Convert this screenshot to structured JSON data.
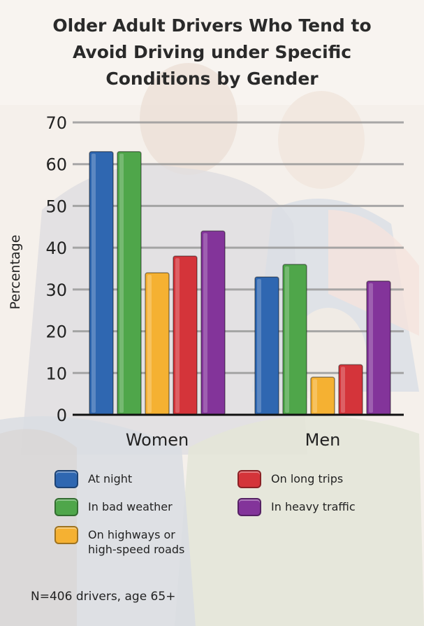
{
  "chart_data": {
    "type": "bar",
    "title": "Older Adult Drivers Who Tend to Avoid Driving under Specific Conditions by Gender",
    "title_lines": [
      "Older Adult Drivers Who Tend to",
      "Avoid Driving under Specific",
      "Conditions by Gender"
    ],
    "xlabel": "",
    "ylabel": "Percentage",
    "ylim": [
      0,
      70
    ],
    "yticks": [
      0,
      10,
      20,
      30,
      40,
      50,
      60,
      70
    ],
    "grid": true,
    "legend_position": "bottom",
    "categories": [
      "Women",
      "Men"
    ],
    "series": [
      {
        "name": "At night",
        "color": "#2f67b1",
        "values": [
          63,
          33
        ]
      },
      {
        "name": "In bad weather",
        "color": "#4fa64a",
        "values": [
          63,
          36
        ]
      },
      {
        "name": "On highways or high-speed roads",
        "legend_lines": [
          "On highways or",
          "high-speed roads"
        ],
        "color": "#f5b132",
        "values": [
          34,
          9
        ]
      },
      {
        "name": "On long trips",
        "color": "#d4343a",
        "values": [
          38,
          12
        ]
      },
      {
        "name": "In heavy traffic",
        "color": "#83349a",
        "values": [
          44,
          32
        ]
      }
    ],
    "footnote": "N=406 drivers, age 65+"
  }
}
